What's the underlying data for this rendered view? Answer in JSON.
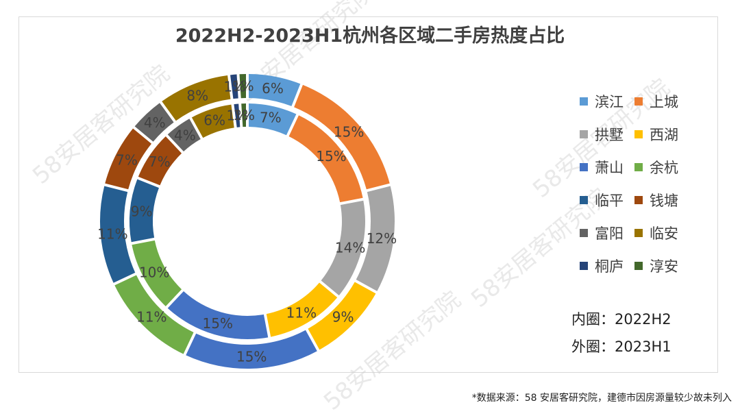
{
  "chart_data": {
    "type": "pie",
    "subtype": "donut",
    "title": "2022H2-2023H1杭州各区域二手房热度占比",
    "categories": [
      "滨江",
      "上城",
      "拱墅",
      "西湖",
      "萧山",
      "余杭",
      "临平",
      "钱塘",
      "富阳",
      "临安",
      "桐庐",
      "淳安"
    ],
    "colors": [
      "#5b9bd5",
      "#ed7d31",
      "#a5a5a5",
      "#ffc000",
      "#4472c4",
      "#70ad47",
      "#255e91",
      "#9e480e",
      "#636363",
      "#997300",
      "#264478",
      "#43682b"
    ],
    "series": [
      {
        "ring": "inner",
        "label": "内圈：2022H2",
        "values": [
          7,
          15,
          14,
          11,
          15,
          10,
          9,
          7,
          4,
          6,
          1,
          1
        ],
        "labels": [
          "7%",
          "15%",
          "14%",
          "11%",
          "15%",
          "10%",
          "9%",
          "7%",
          "4%",
          "6%",
          "1%",
          "1%"
        ]
      },
      {
        "ring": "outer",
        "label": "外圈：2023H1",
        "values": [
          6,
          15,
          12,
          9,
          15,
          11,
          11,
          7,
          4,
          8,
          1,
          1
        ],
        "labels": [
          "6%",
          "15%",
          "12%",
          "9%",
          "15%",
          "11%",
          "11%",
          "7%",
          "4%",
          "8%",
          "1%",
          "1%"
        ]
      }
    ],
    "legend": "right"
  },
  "source_note": "*数据来源：58 安居客研究院，建德市因房源量较少故未列入",
  "watermark_text": "58安居客研究院"
}
